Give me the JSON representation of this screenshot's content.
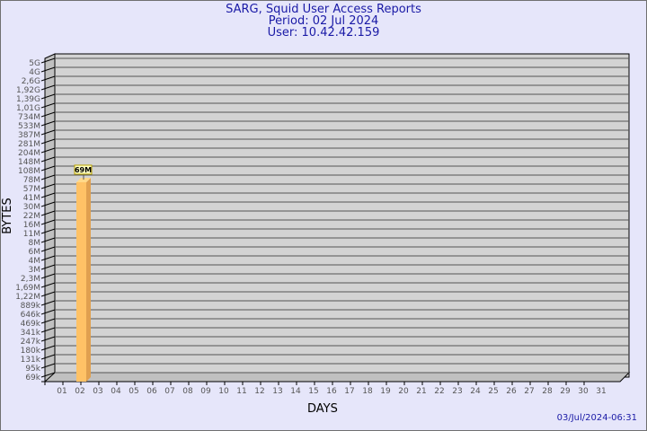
{
  "chart_data": {
    "type": "bar",
    "title": "SARG, Squid User Access Reports",
    "subtitle": [
      "Period: 02 Jul 2024",
      "User: 10.42.42.159"
    ],
    "xlabel": "DAYS",
    "ylabel": "BYTES",
    "y_scale": "log",
    "y_ticks": [
      "69k",
      "95k",
      "131k",
      "180k",
      "247k",
      "341k",
      "469k",
      "646k",
      "889k",
      "1,22M",
      "1,69M",
      "2,3M",
      "3M",
      "4M",
      "6M",
      "8M",
      "11M",
      "16M",
      "22M",
      "30M",
      "41M",
      "57M",
      "78M",
      "108M",
      "148M",
      "204M",
      "281M",
      "387M",
      "533M",
      "734M",
      "1,01G",
      "1,39G",
      "1,92G",
      "2,6G",
      "4G",
      "5G"
    ],
    "ylim": [
      69000,
      5000000000
    ],
    "categories": [
      "01",
      "02",
      "03",
      "04",
      "05",
      "06",
      "07",
      "08",
      "09",
      "10",
      "11",
      "12",
      "13",
      "14",
      "15",
      "16",
      "17",
      "18",
      "19",
      "20",
      "21",
      "22",
      "23",
      "24",
      "25",
      "26",
      "27",
      "28",
      "29",
      "30",
      "31"
    ],
    "values": [
      0,
      69000000,
      0,
      0,
      0,
      0,
      0,
      0,
      0,
      0,
      0,
      0,
      0,
      0,
      0,
      0,
      0,
      0,
      0,
      0,
      0,
      0,
      0,
      0,
      0,
      0,
      0,
      0,
      0,
      0,
      0
    ],
    "data_labels": [
      {
        "category": "02",
        "label": "69M"
      }
    ],
    "grid": true,
    "colors": {
      "bar": "#ffc266",
      "bar_side": "#e0a050",
      "wall": "#d3d3d3",
      "side_wall": "#c0c0c0",
      "title": "#1a1aa6",
      "background": "#e6e6fa"
    }
  },
  "footer": {
    "timestamp": "03/Jul/2024-06:31"
  }
}
